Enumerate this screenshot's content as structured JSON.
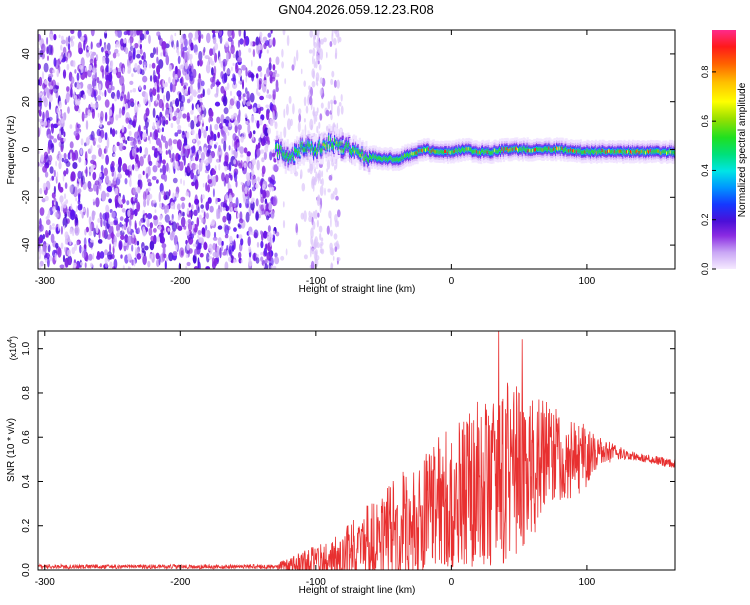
{
  "title": "GN04.2026.059.12.23.R08",
  "chart_data": [
    {
      "type": "heatmap",
      "title": "GN04.2026.059.12.23.R08",
      "xlabel": "Height of straight line (km)",
      "ylabel": "Frequency (Hz)",
      "xlim": [
        -305,
        165
      ],
      "ylim": [
        -50,
        50
      ],
      "xticks": [
        -300,
        -200,
        -100,
        0,
        100
      ],
      "yticks": [
        -40,
        -20,
        0,
        20,
        40
      ],
      "colorbar": {
        "label": "Normalized spectral amplitude",
        "range": [
          0,
          0.97
        ],
        "ticks": [
          0.0,
          0.2,
          0.4,
          0.6,
          0.8
        ]
      },
      "features": {
        "noise_region_x": [
          -305,
          -128
        ],
        "sparse_streaks_x": [
          -125,
          -80
        ],
        "signal_start_x": -130,
        "signal_track": [
          {
            "x": -130,
            "y": 0
          },
          {
            "x": -120,
            "y": -3
          },
          {
            "x": -110,
            "y": 1
          },
          {
            "x": -100,
            "y": 0
          },
          {
            "x": -90,
            "y": 3
          },
          {
            "x": -80,
            "y": 1
          },
          {
            "x": -70,
            "y": -1
          },
          {
            "x": -60,
            "y": -3
          },
          {
            "x": -50,
            "y": -4
          },
          {
            "x": -40,
            "y": -4
          },
          {
            "x": -30,
            "y": -2
          },
          {
            "x": -20,
            "y": 0
          },
          {
            "x": -10,
            "y": -1
          },
          {
            "x": 0,
            "y": -1
          },
          {
            "x": 10,
            "y": 0
          },
          {
            "x": 20,
            "y": -1
          },
          {
            "x": 30,
            "y": -1
          },
          {
            "x": 40,
            "y": 0
          },
          {
            "x": 60,
            "y": 0
          },
          {
            "x": 80,
            "y": 0
          },
          {
            "x": 100,
            "y": -1
          },
          {
            "x": 120,
            "y": -1
          },
          {
            "x": 140,
            "y": -1
          },
          {
            "x": 165,
            "y": -1
          }
        ]
      }
    },
    {
      "type": "line",
      "xlabel": "Height of straight line (km)",
      "ylabel": "SNR (10 * v/v)",
      "yscale_label": "(x10",
      "yscale_exp": "4",
      "yscale_close": ")",
      "xlim": [
        -305,
        165
      ],
      "ylim": [
        0,
        1.08
      ],
      "xticks": [
        -300,
        -200,
        -100,
        0,
        100
      ],
      "yticks": [
        "0.0",
        "0.2",
        "0.4",
        "0.6",
        "0.8",
        "1.0"
      ],
      "series": [
        {
          "color": "#e83030",
          "envelope": [
            {
              "x": -305,
              "base": 0.015,
              "amp": 0.01
            },
            {
              "x": -130,
              "base": 0.015,
              "amp": 0.01
            },
            {
              "x": -110,
              "base": 0.03,
              "amp": 0.06
            },
            {
              "x": -90,
              "base": 0.05,
              "amp": 0.08
            },
            {
              "x": -70,
              "base": 0.1,
              "amp": 0.15
            },
            {
              "x": -50,
              "base": 0.16,
              "amp": 0.2
            },
            {
              "x": -30,
              "base": 0.22,
              "amp": 0.26
            },
            {
              "x": -10,
              "base": 0.3,
              "amp": 0.3
            },
            {
              "x": 10,
              "base": 0.36,
              "amp": 0.34
            },
            {
              "x": 30,
              "base": 0.42,
              "amp": 0.42
            },
            {
              "x": 45,
              "base": 0.45,
              "amp": 0.4
            },
            {
              "x": 60,
              "base": 0.48,
              "amp": 0.32
            },
            {
              "x": 80,
              "base": 0.5,
              "amp": 0.22
            },
            {
              "x": 100,
              "base": 0.52,
              "amp": 0.15
            },
            {
              "x": 112,
              "base": 0.54,
              "amp": 0.06
            },
            {
              "x": 130,
              "base": 0.52,
              "amp": 0.02
            },
            {
              "x": 165,
              "base": 0.48,
              "amp": 0.02
            }
          ]
        }
      ]
    }
  ]
}
